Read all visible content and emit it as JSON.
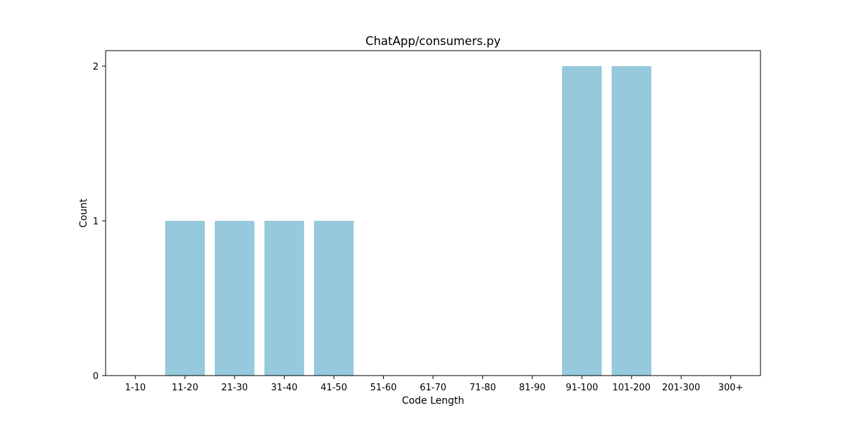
{
  "chart_data": {
    "type": "bar",
    "title": "ChatApp/consumers.py",
    "xlabel": "Code Length",
    "ylabel": "Count",
    "categories": [
      "1-10",
      "11-20",
      "21-30",
      "31-40",
      "41-50",
      "51-60",
      "61-70",
      "71-80",
      "81-90",
      "91-100",
      "101-200",
      "201-300",
      "300+"
    ],
    "values": [
      0,
      1,
      1,
      1,
      1,
      0,
      0,
      0,
      0,
      2,
      2,
      0,
      0
    ],
    "ylim": [
      0,
      2.1
    ],
    "yticks": [
      0,
      1,
      2
    ],
    "bar_color": "#96c9dc",
    "grid": false,
    "legend": "none"
  }
}
